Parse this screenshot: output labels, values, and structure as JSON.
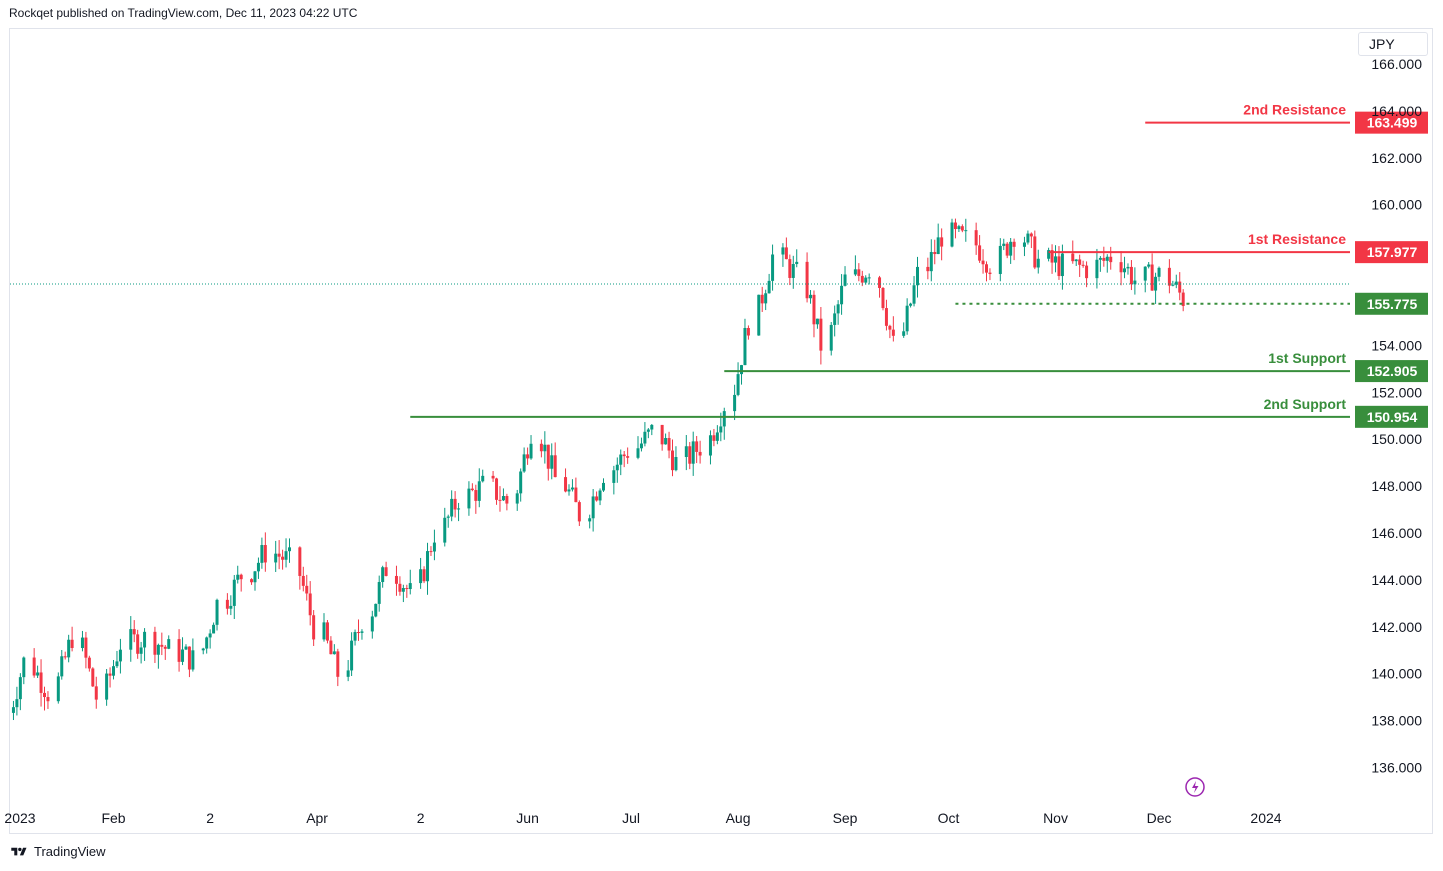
{
  "header": {
    "published": "Rockqet published on TradingView.com, Dec 11, 2023 04:22 UTC"
  },
  "footer": {
    "brand": "TradingView"
  },
  "currency": "JPY",
  "colors": {
    "up": "#089981",
    "down": "#f23645",
    "resistance": "#f23645",
    "support": "#388e3c",
    "current": "#089981",
    "event": "#9c27b0"
  },
  "chart_data": {
    "type": "candlestick",
    "title": "",
    "y_axis": {
      "min": 135.0,
      "max": 166.5,
      "ticks": [
        166.0,
        164.0,
        162.0,
        160.0,
        158.0,
        156.0,
        154.0,
        152.0,
        150.0,
        148.0,
        146.0,
        144.0,
        142.0,
        140.0,
        138.0,
        136.0
      ],
      "tick_labels": [
        "166.000",
        "164.000",
        "162.000",
        "160.000",
        "",
        "",
        "154.000",
        "152.000",
        "150.000",
        "148.000",
        "146.000",
        "144.000",
        "142.000",
        "140.000",
        "138.000",
        "136.000"
      ]
    },
    "x_axis": {
      "labels": [
        {
          "text": "2023",
          "date": "2023-01-02"
        },
        {
          "text": "Feb",
          "date": "2023-02-01"
        },
        {
          "text": "2",
          "date": "2023-03-01"
        },
        {
          "text": "Apr",
          "date": "2023-04-01"
        },
        {
          "text": "2",
          "date": "2023-05-01"
        },
        {
          "text": "Jun",
          "date": "2023-06-01"
        },
        {
          "text": "Jul",
          "date": "2023-07-01"
        },
        {
          "text": "Aug",
          "date": "2023-08-01"
        },
        {
          "text": "Sep",
          "date": "2023-09-01"
        },
        {
          "text": "Oct",
          "date": "2023-10-01"
        },
        {
          "text": "Nov",
          "date": "2023-11-01"
        },
        {
          "text": "Dec",
          "date": "2023-12-01"
        },
        {
          "text": "2024",
          "date": "2024-01-01"
        }
      ]
    },
    "levels": [
      {
        "name": "2nd Resistance",
        "value": 163.499,
        "label": "163.499",
        "kind": "resistance",
        "from": "2023-11-27"
      },
      {
        "name": "1st Resistance",
        "value": 157.977,
        "label": "157.977",
        "kind": "resistance",
        "from": "2023-10-30"
      },
      {
        "name": "1st Support",
        "value": 152.905,
        "label": "152.905",
        "kind": "support",
        "from": "2023-07-28"
      },
      {
        "name": "2nd Support",
        "value": 150.954,
        "label": "150.954",
        "kind": "support",
        "from": "2023-04-28"
      }
    ],
    "current_price": {
      "value": 155.775,
      "label": "155.775",
      "from": "2023-10-03"
    },
    "grid": false,
    "series": [
      {
        "name": "",
        "points": [
          {
            "x": "2023-01-02",
            "v": 137.8
          },
          {
            "x": "2023-01-09",
            "v": 140.5
          },
          {
            "x": "2023-01-16",
            "v": 139.2
          },
          {
            "x": "2023-01-23",
            "v": 141.6
          },
          {
            "x": "2023-01-30",
            "v": 139.0
          },
          {
            "x": "2023-02-06",
            "v": 141.3
          },
          {
            "x": "2023-02-13",
            "v": 141.5
          },
          {
            "x": "2023-02-20",
            "v": 141.0
          },
          {
            "x": "2023-02-27",
            "v": 140.6
          },
          {
            "x": "2023-03-06",
            "v": 143.0
          },
          {
            "x": "2023-03-13",
            "v": 144.2
          },
          {
            "x": "2023-03-20",
            "v": 145.2
          },
          {
            "x": "2023-03-27",
            "v": 144.8
          },
          {
            "x": "2023-04-03",
            "v": 142.0
          },
          {
            "x": "2023-04-10",
            "v": 140.0
          },
          {
            "x": "2023-04-17",
            "v": 142.3
          },
          {
            "x": "2023-04-24",
            "v": 144.5
          },
          {
            "x": "2023-05-01",
            "v": 143.4
          },
          {
            "x": "2023-05-08",
            "v": 146.0
          },
          {
            "x": "2023-05-15",
            "v": 147.5
          },
          {
            "x": "2023-05-22",
            "v": 148.0
          },
          {
            "x": "2023-05-29",
            "v": 147.3
          },
          {
            "x": "2023-06-05",
            "v": 150.4
          },
          {
            "x": "2023-06-12",
            "v": 148.3
          },
          {
            "x": "2023-06-19",
            "v": 146.8
          },
          {
            "x": "2023-06-26",
            "v": 148.6
          },
          {
            "x": "2023-07-03",
            "v": 149.5
          },
          {
            "x": "2023-07-10",
            "v": 150.3
          },
          {
            "x": "2023-07-17",
            "v": 149.0
          },
          {
            "x": "2023-07-24",
            "v": 149.7
          },
          {
            "x": "2023-07-31",
            "v": 151.5
          },
          {
            "x": "2023-08-07",
            "v": 155.0
          },
          {
            "x": "2023-08-14",
            "v": 157.8
          },
          {
            "x": "2023-08-21",
            "v": 157.0
          },
          {
            "x": "2023-08-28",
            "v": 154.0
          },
          {
            "x": "2023-09-04",
            "v": 156.8
          },
          {
            "x": "2023-09-11",
            "v": 157.3
          },
          {
            "x": "2023-09-18",
            "v": 154.0
          },
          {
            "x": "2023-09-25",
            "v": 157.0
          },
          {
            "x": "2023-10-02",
            "v": 158.7
          },
          {
            "x": "2023-10-09",
            "v": 158.5
          },
          {
            "x": "2023-10-16",
            "v": 157.5
          },
          {
            "x": "2023-10-23",
            "v": 158.8
          },
          {
            "x": "2023-10-30",
            "v": 157.6
          },
          {
            "x": "2023-11-06",
            "v": 157.4
          },
          {
            "x": "2023-11-13",
            "v": 157.3
          },
          {
            "x": "2023-11-20",
            "v": 157.8
          },
          {
            "x": "2023-11-27",
            "v": 156.8
          },
          {
            "x": "2023-12-04",
            "v": 157.0
          },
          {
            "x": "2023-12-11",
            "v": 156.0
          }
        ]
      }
    ]
  }
}
